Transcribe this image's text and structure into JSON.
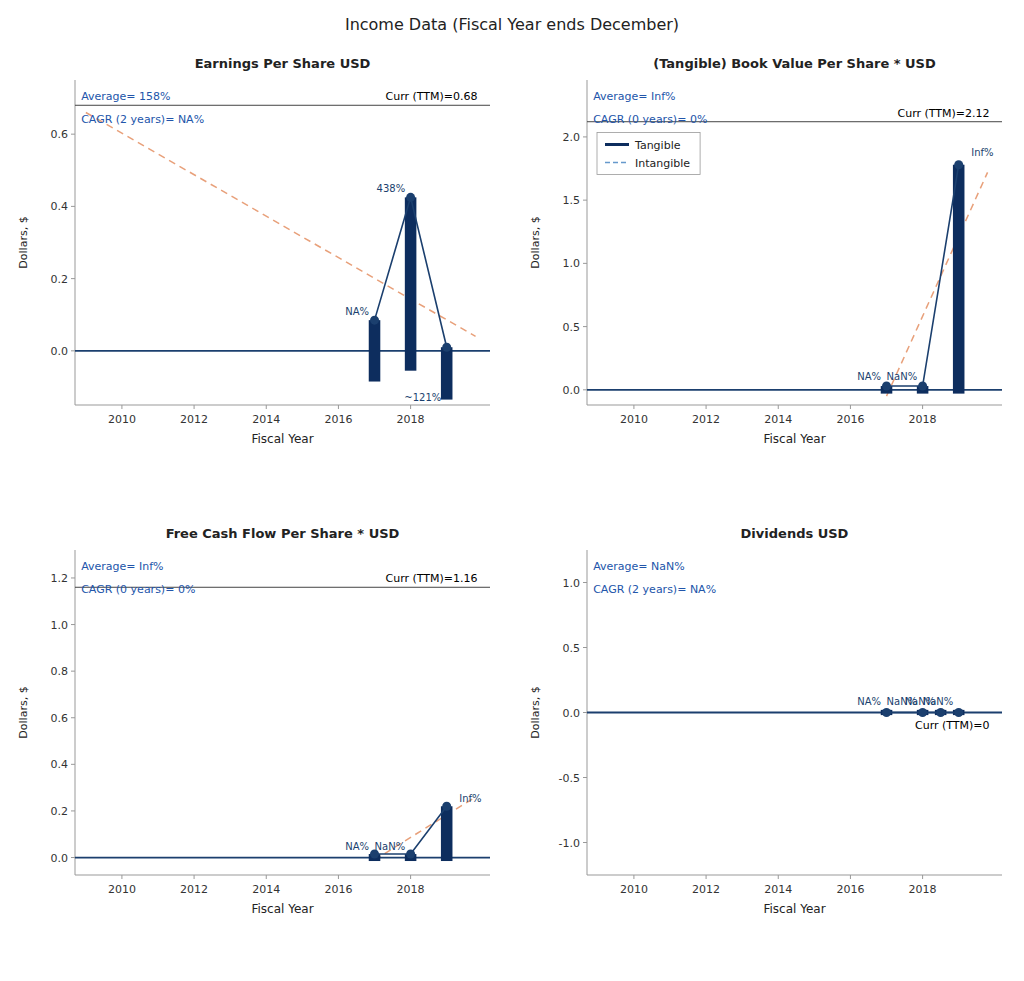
{
  "title": "Income Data (Fiscal Year ends December)",
  "chart_data": [
    {
      "type": "bar",
      "title": "Earnings Per Share USD",
      "x_label": "Fiscal Year",
      "y_label": "Dollars, $",
      "xlim": [
        2008.7,
        2020.2
      ],
      "xticks": [
        2010,
        2012,
        2014,
        2016,
        2018
      ],
      "ylim": [
        -0.15,
        0.75
      ],
      "yticks": [
        {
          "value": 0.0,
          "label": "0.0"
        },
        0.2,
        0.4,
        0.6
      ],
      "grid": false,
      "series": [
        {
          "type": "bar",
          "color": "#0d2d5e",
          "x": [
            2017,
            2018,
            2019
          ],
          "base": [
            -0.085,
            -0.055,
            -0.135
          ],
          "values": [
            0.085,
            0.425,
            0.01
          ]
        },
        {
          "type": "line",
          "color": "#1b3f6e",
          "marker": "circle",
          "x": [
            2017,
            2018,
            2019
          ],
          "values": [
            0.085,
            0.425,
            0.01
          ]
        },
        {
          "type": "line",
          "color": "#e8a07a",
          "line_style": "dashed",
          "x": [
            2009.0,
            2019.8
          ],
          "values": [
            0.66,
            0.04
          ]
        }
      ],
      "hline": {
        "value": 0.68,
        "label": "Curr (TTM)=0.68",
        "color": "#444444",
        "label_side": "above"
      },
      "baseline": {
        "value": 0,
        "color": "#1b3f6e"
      },
      "stats": {
        "texts": [
          "Average= 158%",
          "CAGR (2 years)= NA%"
        ],
        "color": "#2255aa"
      },
      "annotation_color": "#1b3f6e",
      "annotations": [
        {
          "text": "NA%",
          "x": 2016.85,
          "y": 0.095,
          "align": "right"
        },
        {
          "text": "438%",
          "x": 2017.85,
          "y": 0.435,
          "align": "right"
        },
        {
          "text": "~121%",
          "x": 2018.85,
          "y": -0.145,
          "align": "right"
        }
      ]
    },
    {
      "type": "bar",
      "title": "(Tangible) Book Value Per Share * USD",
      "x_label": "Fiscal Year",
      "y_label": "Dollars, $",
      "xlim": [
        2008.7,
        2020.2
      ],
      "xticks": [
        2010,
        2012,
        2014,
        2016,
        2018
      ],
      "ylim": [
        -0.12,
        2.45
      ],
      "yticks": [
        {
          "value": 0,
          "label": "0.0"
        },
        0.5,
        {
          "value": 1,
          "label": "1.0"
        },
        1.5,
        {
          "value": 2,
          "label": "2.0"
        }
      ],
      "grid": false,
      "legend": "upper left",
      "series": [
        {
          "type": "bar",
          "name": "Tangible",
          "color": "#0d2d5e",
          "x": [
            2017,
            2018,
            2019
          ],
          "base": [
            -0.03,
            -0.03,
            -0.03
          ],
          "values": [
            0.03,
            0.03,
            1.78
          ]
        },
        {
          "type": "line",
          "name": "Intangible",
          "color": "#6699cc",
          "line_style": "dashed",
          "x": [
            2017,
            2018,
            2019
          ],
          "values": [
            null,
            null,
            null
          ]
        },
        {
          "type": "line",
          "color": "#1b3f6e",
          "marker": "circle",
          "x": [
            2017,
            2018,
            2019
          ],
          "values": [
            0.03,
            0.03,
            1.78
          ]
        },
        {
          "type": "line",
          "color": "#e8a07a",
          "line_style": "dashed",
          "x": [
            2017.0,
            2019.8
          ],
          "values": [
            -0.05,
            1.72
          ]
        }
      ],
      "hline": {
        "value": 2.12,
        "label": "Curr (TTM)=2.12",
        "color": "#444444",
        "label_side": "above"
      },
      "baseline": {
        "value": 0,
        "color": "#1b3f6e"
      },
      "stats": {
        "texts": [
          "Average= Inf%",
          "CAGR (0 years)= 0%"
        ],
        "color": "#2255aa"
      },
      "annotation_color": "#1b3f6e",
      "annotations": [
        {
          "text": "NA%",
          "x": 2016.85,
          "y": 0.06,
          "align": "right"
        },
        {
          "text": "NaN%",
          "x": 2017.85,
          "y": 0.06,
          "align": "right"
        },
        {
          "text": "Inf%",
          "x": 2019.35,
          "y": 1.83,
          "align": "left"
        }
      ]
    },
    {
      "type": "bar",
      "title": "Free Cash Flow Per Share * USD",
      "x_label": "Fiscal Year",
      "y_label": "Dollars, $",
      "xlim": [
        2008.7,
        2020.2
      ],
      "xticks": [
        2010,
        2012,
        2014,
        2016,
        2018
      ],
      "ylim": [
        -0.075,
        1.32
      ],
      "yticks": [
        {
          "value": 0,
          "label": "0.0"
        },
        0.2,
        0.4,
        0.6,
        0.8,
        {
          "value": 1,
          "label": "1.0"
        },
        1.2
      ],
      "grid": false,
      "series": [
        {
          "type": "bar",
          "color": "#0d2d5e",
          "x": [
            2017,
            2018,
            2019
          ],
          "base": [
            -0.015,
            -0.015,
            -0.015
          ],
          "values": [
            0.015,
            0.015,
            0.22
          ]
        },
        {
          "type": "line",
          "color": "#1b3f6e",
          "marker": "circle",
          "x": [
            2017,
            2018,
            2019
          ],
          "values": [
            0.015,
            0.015,
            0.22
          ]
        },
        {
          "type": "line",
          "color": "#e8a07a",
          "line_style": "dashed",
          "x": [
            2017.0,
            2019.8
          ],
          "values": [
            -0.01,
            0.26
          ]
        }
      ],
      "hline": {
        "value": 1.16,
        "label": "Curr (TTM)=1.16",
        "color": "#444444",
        "label_side": "above"
      },
      "baseline": {
        "value": 0,
        "color": "#1b3f6e"
      },
      "stats": {
        "texts": [
          "Average= Inf%",
          "CAGR (0 years)= 0%"
        ],
        "color": "#2255aa"
      },
      "annotation_color": "#1b3f6e",
      "annotations": [
        {
          "text": "NA%",
          "x": 2016.85,
          "y": 0.025,
          "align": "right"
        },
        {
          "text": "NaN%",
          "x": 2017.85,
          "y": 0.025,
          "align": "right"
        },
        {
          "text": "Inf%",
          "x": 2019.35,
          "y": 0.23,
          "align": "left"
        }
      ]
    },
    {
      "type": "bar",
      "title": "Dividends USD",
      "x_label": "Fiscal Year",
      "y_label": "Dollars, $",
      "xlim": [
        2008.7,
        2020.2
      ],
      "xticks": [
        2010,
        2012,
        2014,
        2016,
        2018
      ],
      "ylim": [
        -1.25,
        1.25
      ],
      "yticks": [
        {
          "value": -1,
          "label": "-1.0"
        },
        -0.5,
        {
          "value": 0,
          "label": "0.0"
        },
        0.5,
        {
          "value": 1,
          "label": "1.0"
        }
      ],
      "grid": false,
      "series": [
        {
          "type": "bar",
          "color": "#0d2d5e",
          "x": [
            2017,
            2018,
            2018.5,
            2019
          ],
          "base": [
            -0.02,
            -0.02,
            -0.02,
            -0.02
          ],
          "values": [
            0.02,
            0.02,
            0.02,
            0.02
          ]
        },
        {
          "type": "line",
          "color": "#1b3f6e",
          "marker": "circle",
          "x": [
            2017,
            2018,
            2018.5,
            2019
          ],
          "values": [
            0.0,
            0.0,
            0.0,
            0.0
          ]
        }
      ],
      "hline": {
        "value": 0.0,
        "label": "Curr (TTM)=0",
        "color": "#444444",
        "label_side": "below"
      },
      "baseline": {
        "value": 0,
        "color": "#1b3f6e"
      },
      "stats": {
        "texts": [
          "Average= NaN%",
          "CAGR (2 years)= NA%"
        ],
        "color": "#2255aa"
      },
      "annotation_color": "#1b3f6e",
      "annotations": [
        {
          "text": "NA%",
          "x": 2016.85,
          "y": 0.04,
          "align": "right"
        },
        {
          "text": "NaN%",
          "x": 2017.85,
          "y": 0.04,
          "align": "right"
        },
        {
          "text": "NaN%",
          "x": 2018.35,
          "y": 0.04,
          "align": "right"
        },
        {
          "text": "NaN%",
          "x": 2018.85,
          "y": 0.04,
          "align": "right"
        }
      ]
    }
  ]
}
